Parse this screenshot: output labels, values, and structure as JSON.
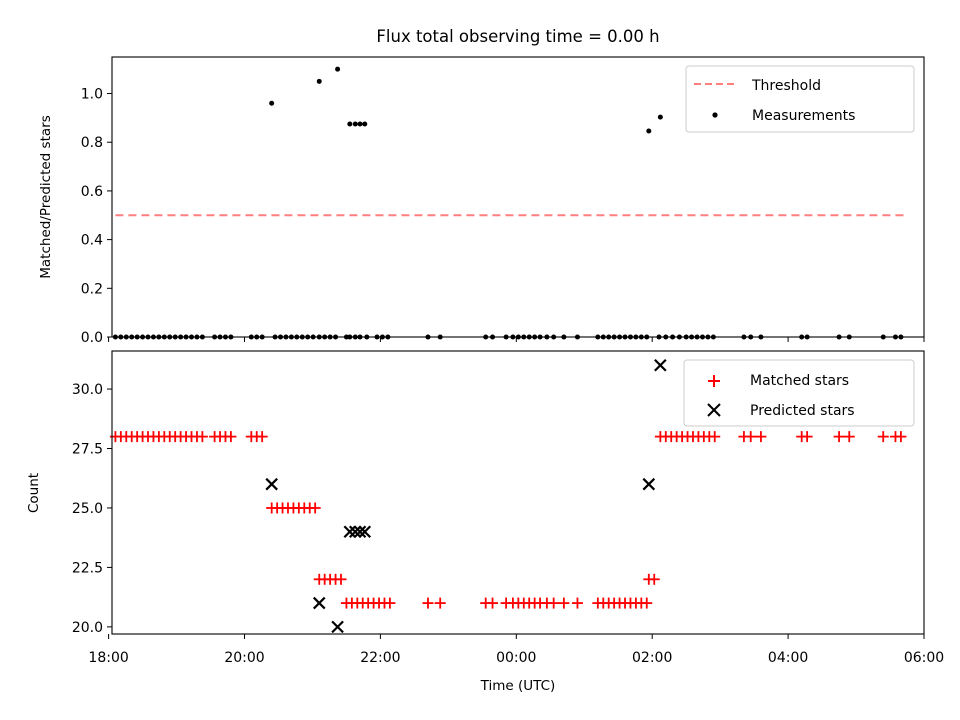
{
  "chart_data": [
    {
      "type": "scatter",
      "title": "Flux total observing time = 0.00 h",
      "ylabel": "Matched/Predicted stars",
      "xlabel": "",
      "xlim": [
        18.05,
        30.0
      ],
      "ylim": [
        0.0,
        1.15
      ],
      "yticks": [
        "0.0",
        "0.2",
        "0.4",
        "0.6",
        "0.8",
        "1.0"
      ],
      "threshold": {
        "value": 0.5,
        "x_range": [
          18.1,
          29.7
        ]
      },
      "legend": {
        "position": "top-right",
        "entries": [
          "Threshold",
          "Measurements"
        ]
      },
      "series": [
        {
          "name": "Measurements",
          "nonzero": [
            {
              "x": 20.4,
              "y": 0.96
            },
            {
              "x": 21.1,
              "y": 1.05
            },
            {
              "x": 21.37,
              "y": 1.1
            },
            {
              "x": 21.55,
              "y": 0.875
            },
            {
              "x": 21.63,
              "y": 0.875
            },
            {
              "x": 21.7,
              "y": 0.875
            },
            {
              "x": 21.77,
              "y": 0.875
            },
            {
              "x": 25.95,
              "y": 0.846
            },
            {
              "x": 26.12,
              "y": 0.903
            }
          ],
          "zero_x": [
            18.1,
            18.18,
            18.26,
            18.34,
            18.42,
            18.5,
            18.58,
            18.66,
            18.74,
            18.82,
            18.9,
            18.98,
            19.06,
            19.14,
            19.22,
            19.3,
            19.38,
            19.56,
            19.64,
            19.72,
            19.8,
            20.1,
            20.18,
            20.26,
            20.45,
            20.53,
            20.61,
            20.69,
            20.77,
            20.85,
            20.93,
            21.01,
            21.1,
            21.18,
            21.26,
            21.34,
            21.5,
            21.55,
            21.63,
            21.7,
            21.8,
            21.95,
            22.03,
            22.11,
            22.7,
            22.88,
            23.55,
            23.65,
            23.85,
            23.95,
            24.03,
            24.11,
            24.19,
            24.27,
            24.35,
            24.45,
            24.55,
            24.7,
            24.9,
            25.2,
            25.28,
            25.36,
            25.44,
            25.52,
            25.6,
            25.68,
            25.76,
            25.84,
            25.92,
            26.1,
            26.2,
            26.3,
            26.4,
            26.5,
            26.58,
            26.66,
            26.74,
            26.82,
            26.9,
            27.35,
            27.45,
            27.6,
            28.2,
            28.28,
            28.75,
            28.9,
            29.4,
            29.58,
            29.66
          ]
        }
      ]
    },
    {
      "type": "scatter",
      "title": "",
      "ylabel": "Count",
      "xlabel": "Time (UTC)",
      "xlim": [
        18.05,
        30.0
      ],
      "ylim": [
        19.7,
        31.6
      ],
      "xticks": [
        {
          "value": 18,
          "label": "18:00"
        },
        {
          "value": 20,
          "label": "20:00"
        },
        {
          "value": 22,
          "label": "22:00"
        },
        {
          "value": 24,
          "label": "00:00"
        },
        {
          "value": 26,
          "label": "02:00"
        },
        {
          "value": 28,
          "label": "04:00"
        },
        {
          "value": 30,
          "label": "06:00"
        }
      ],
      "yticks": [
        "20.0",
        "22.5",
        "25.0",
        "27.5",
        "30.0"
      ],
      "legend": {
        "position": "top-right",
        "entries": [
          "Matched stars",
          "Predicted stars"
        ]
      },
      "series": [
        {
          "name": "Matched stars",
          "marker": "+",
          "color": "#ff0000",
          "points": [
            {
              "x": 18.1,
              "y": 28
            },
            {
              "x": 18.18,
              "y": 28
            },
            {
              "x": 18.26,
              "y": 28
            },
            {
              "x": 18.34,
              "y": 28
            },
            {
              "x": 18.42,
              "y": 28
            },
            {
              "x": 18.5,
              "y": 28
            },
            {
              "x": 18.58,
              "y": 28
            },
            {
              "x": 18.66,
              "y": 28
            },
            {
              "x": 18.74,
              "y": 28
            },
            {
              "x": 18.82,
              "y": 28
            },
            {
              "x": 18.9,
              "y": 28
            },
            {
              "x": 18.98,
              "y": 28
            },
            {
              "x": 19.06,
              "y": 28
            },
            {
              "x": 19.14,
              "y": 28
            },
            {
              "x": 19.22,
              "y": 28
            },
            {
              "x": 19.3,
              "y": 28
            },
            {
              "x": 19.38,
              "y": 28
            },
            {
              "x": 19.56,
              "y": 28
            },
            {
              "x": 19.64,
              "y": 28
            },
            {
              "x": 19.72,
              "y": 28
            },
            {
              "x": 19.8,
              "y": 28
            },
            {
              "x": 20.1,
              "y": 28
            },
            {
              "x": 20.18,
              "y": 28
            },
            {
              "x": 20.26,
              "y": 28
            },
            {
              "x": 20.4,
              "y": 25
            },
            {
              "x": 20.48,
              "y": 25
            },
            {
              "x": 20.56,
              "y": 25
            },
            {
              "x": 20.64,
              "y": 25
            },
            {
              "x": 20.72,
              "y": 25
            },
            {
              "x": 20.8,
              "y": 25
            },
            {
              "x": 20.88,
              "y": 25
            },
            {
              "x": 20.96,
              "y": 25
            },
            {
              "x": 21.04,
              "y": 25
            },
            {
              "x": 21.1,
              "y": 22
            },
            {
              "x": 21.18,
              "y": 22
            },
            {
              "x": 21.26,
              "y": 22
            },
            {
              "x": 21.34,
              "y": 22
            },
            {
              "x": 21.42,
              "y": 22
            },
            {
              "x": 21.5,
              "y": 21
            },
            {
              "x": 21.58,
              "y": 21
            },
            {
              "x": 21.66,
              "y": 21
            },
            {
              "x": 21.74,
              "y": 21
            },
            {
              "x": 21.82,
              "y": 21
            },
            {
              "x": 21.9,
              "y": 21
            },
            {
              "x": 21.98,
              "y": 21
            },
            {
              "x": 22.06,
              "y": 21
            },
            {
              "x": 22.14,
              "y": 21
            },
            {
              "x": 22.7,
              "y": 21
            },
            {
              "x": 22.88,
              "y": 21
            },
            {
              "x": 23.55,
              "y": 21
            },
            {
              "x": 23.65,
              "y": 21
            },
            {
              "x": 23.85,
              "y": 21
            },
            {
              "x": 23.95,
              "y": 21
            },
            {
              "x": 24.03,
              "y": 21
            },
            {
              "x": 24.11,
              "y": 21
            },
            {
              "x": 24.19,
              "y": 21
            },
            {
              "x": 24.27,
              "y": 21
            },
            {
              "x": 24.35,
              "y": 21
            },
            {
              "x": 24.45,
              "y": 21
            },
            {
              "x": 24.55,
              "y": 21
            },
            {
              "x": 24.7,
              "y": 21
            },
            {
              "x": 24.9,
              "y": 21
            },
            {
              "x": 25.2,
              "y": 21
            },
            {
              "x": 25.28,
              "y": 21
            },
            {
              "x": 25.36,
              "y": 21
            },
            {
              "x": 25.44,
              "y": 21
            },
            {
              "x": 25.52,
              "y": 21
            },
            {
              "x": 25.6,
              "y": 21
            },
            {
              "x": 25.68,
              "y": 21
            },
            {
              "x": 25.76,
              "y": 21
            },
            {
              "x": 25.84,
              "y": 21
            },
            {
              "x": 25.92,
              "y": 21
            },
            {
              "x": 25.95,
              "y": 22
            },
            {
              "x": 26.03,
              "y": 22
            },
            {
              "x": 26.12,
              "y": 28
            },
            {
              "x": 26.2,
              "y": 28
            },
            {
              "x": 26.28,
              "y": 28
            },
            {
              "x": 26.36,
              "y": 28
            },
            {
              "x": 26.44,
              "y": 28
            },
            {
              "x": 26.52,
              "y": 28
            },
            {
              "x": 26.6,
              "y": 28
            },
            {
              "x": 26.68,
              "y": 28
            },
            {
              "x": 26.76,
              "y": 28
            },
            {
              "x": 26.84,
              "y": 28
            },
            {
              "x": 26.92,
              "y": 28
            },
            {
              "x": 27.35,
              "y": 28
            },
            {
              "x": 27.45,
              "y": 28
            },
            {
              "x": 27.6,
              "y": 28
            },
            {
              "x": 28.2,
              "y": 28
            },
            {
              "x": 28.28,
              "y": 28
            },
            {
              "x": 28.75,
              "y": 28
            },
            {
              "x": 28.9,
              "y": 28
            },
            {
              "x": 29.4,
              "y": 28
            },
            {
              "x": 29.58,
              "y": 28
            },
            {
              "x": 29.66,
              "y": 28
            }
          ]
        },
        {
          "name": "Predicted stars",
          "marker": "x",
          "color": "#000000",
          "points": [
            {
              "x": 20.4,
              "y": 26
            },
            {
              "x": 21.1,
              "y": 21
            },
            {
              "x": 21.37,
              "y": 20
            },
            {
              "x": 21.55,
              "y": 24
            },
            {
              "x": 21.63,
              "y": 24
            },
            {
              "x": 21.7,
              "y": 24
            },
            {
              "x": 21.77,
              "y": 24
            },
            {
              "x": 25.95,
              "y": 26
            },
            {
              "x": 26.12,
              "y": 31
            }
          ]
        }
      ]
    }
  ]
}
